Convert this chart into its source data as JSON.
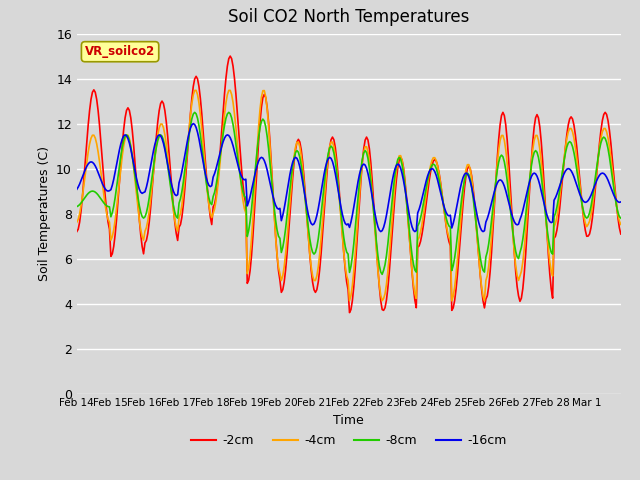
{
  "title": "Soil CO2 North Temperatures",
  "xlabel": "Time",
  "ylabel": "Soil Temperatures (C)",
  "ylim": [
    0,
    16
  ],
  "annotation": "VR_soilco2",
  "bg_color": "#d8d8d8",
  "series_colors": {
    "-2cm": "#ff0000",
    "-4cm": "#ffa500",
    "-8cm": "#22cc00",
    "-16cm": "#0000ee"
  },
  "x_ticks": [
    "Feb 14",
    "Feb 15",
    "Feb 16",
    "Feb 17",
    "Feb 18",
    "Feb 19",
    "Feb 20",
    "Feb 21",
    "Feb 22",
    "Feb 23",
    "Feb 24",
    "Feb 25",
    "Feb 26",
    "Feb 27",
    "Feb 28",
    "Mar 1"
  ],
  "y_ticks": [
    0,
    2,
    4,
    6,
    8,
    10,
    12,
    14,
    16
  ],
  "n_days": 16,
  "pts_per_day": 24,
  "series": {
    "-2cm": {
      "daily_max": [
        13.5,
        12.7,
        13.0,
        14.1,
        15.0,
        13.3,
        11.3,
        11.4,
        11.4,
        10.5,
        10.4,
        10.1,
        12.5,
        12.4,
        12.3,
        12.5
      ],
      "daily_min": [
        7.2,
        6.1,
        6.7,
        7.4,
        8.3,
        4.9,
        4.5,
        4.5,
        3.6,
        3.7,
        6.5,
        3.7,
        4.2,
        4.1,
        6.9,
        7.0
      ]
    },
    "-4cm": {
      "daily_max": [
        11.5,
        11.5,
        12.0,
        13.5,
        13.5,
        13.5,
        11.2,
        11.2,
        11.0,
        10.6,
        10.5,
        10.2,
        11.5,
        11.5,
        11.8,
        11.8
      ],
      "daily_min": [
        7.6,
        6.8,
        7.2,
        7.8,
        8.0,
        5.3,
        5.0,
        5.0,
        4.1,
        4.2,
        6.8,
        4.1,
        5.0,
        5.2,
        7.4,
        7.5
      ]
    },
    "-8cm": {
      "daily_max": [
        9.0,
        11.5,
        11.5,
        12.5,
        12.5,
        12.2,
        10.8,
        11.0,
        10.8,
        10.5,
        10.2,
        9.8,
        10.6,
        10.8,
        11.2,
        11.4
      ],
      "daily_min": [
        8.3,
        7.8,
        7.8,
        8.4,
        8.7,
        6.9,
        6.2,
        6.2,
        5.3,
        5.4,
        7.4,
        5.4,
        6.0,
        6.2,
        7.8,
        7.8
      ]
    },
    "-16cm": {
      "daily_max": [
        10.3,
        11.5,
        11.5,
        12.0,
        11.5,
        10.5,
        10.5,
        10.5,
        10.2,
        10.2,
        10.0,
        9.8,
        9.5,
        9.8,
        10.0,
        9.8
      ],
      "daily_min": [
        9.0,
        8.9,
        8.8,
        9.2,
        9.5,
        8.2,
        7.5,
        7.5,
        7.2,
        7.2,
        7.9,
        7.2,
        7.5,
        7.6,
        8.5,
        8.5
      ]
    }
  }
}
